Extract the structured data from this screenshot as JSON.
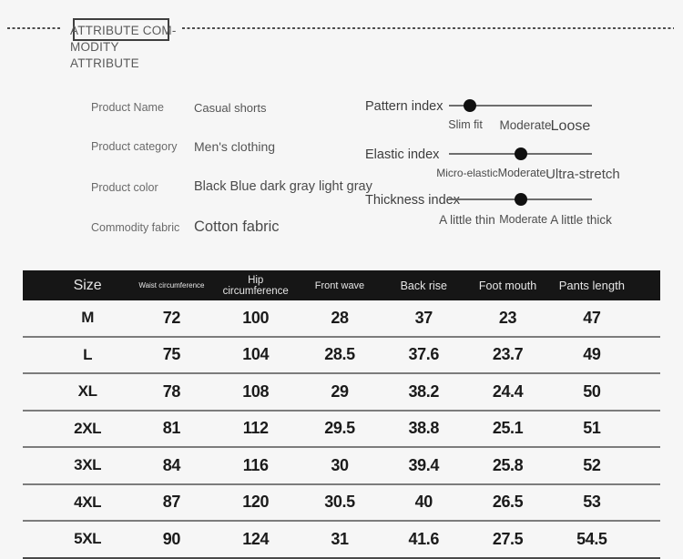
{
  "colors": {
    "page_bg": "#f6f6f6",
    "table_header_bg": "#161616",
    "slider_dot": "#101010",
    "row_divider": "#7c7c7c"
  },
  "header": {
    "title_lines": [
      "ATTRIBUTE COM-",
      "MODITY ATTRIBUTE"
    ]
  },
  "attributes": [
    {
      "label": "Product Name",
      "value": "Casual shorts"
    },
    {
      "label": "Product category",
      "value": "Men's clothing"
    },
    {
      "label": "Product color",
      "value": "Black Blue dark gray light gray"
    },
    {
      "label": "Commodity fabric",
      "value": "Cotton fabric"
    }
  ],
  "indices": [
    {
      "label": "Pattern index",
      "value_label": "Slim fit",
      "dot_pct": 14.6,
      "ticks": [
        "Slim fit",
        "Moderate",
        "Loose"
      ],
      "tick_pcts": [
        11.5,
        53.5,
        85
      ]
    },
    {
      "label": "Elastic index",
      "value_label": "Moderate",
      "dot_pct": 50.3,
      "ticks": [
        "Micro-elastic",
        "Moderate",
        "Ultra-stretch"
      ],
      "tick_pcts": [
        12.7,
        51,
        93.6
      ]
    },
    {
      "label": "Thickness index",
      "value_label": "Moderate",
      "dot_pct": 50.3,
      "ticks": [
        "A little thin",
        "Moderate",
        "A little thick"
      ],
      "tick_pcts": [
        12.7,
        52,
        92.4
      ]
    }
  ],
  "size_table": {
    "columns": [
      "Size",
      "Waist circumference",
      "Hip circumference",
      "Front wave",
      "Back rise",
      "Foot mouth",
      "Pants length"
    ],
    "rows": [
      [
        "M",
        "72",
        "100",
        "28",
        "37",
        "23",
        "47"
      ],
      [
        "L",
        "75",
        "104",
        "28.5",
        "37.6",
        "23.7",
        "49"
      ],
      [
        "XL",
        "78",
        "108",
        "29",
        "38.2",
        "24.4",
        "50"
      ],
      [
        "2XL",
        "81",
        "112",
        "29.5",
        "38.8",
        "25.1",
        "51"
      ],
      [
        "3XL",
        "84",
        "116",
        "30",
        "39.4",
        "25.8",
        "52"
      ],
      [
        "4XL",
        "87",
        "120",
        "30.5",
        "40",
        "26.5",
        "53"
      ],
      [
        "5XL",
        "90",
        "124",
        "31",
        "41.6",
        "27.5",
        "54.5"
      ]
    ]
  }
}
